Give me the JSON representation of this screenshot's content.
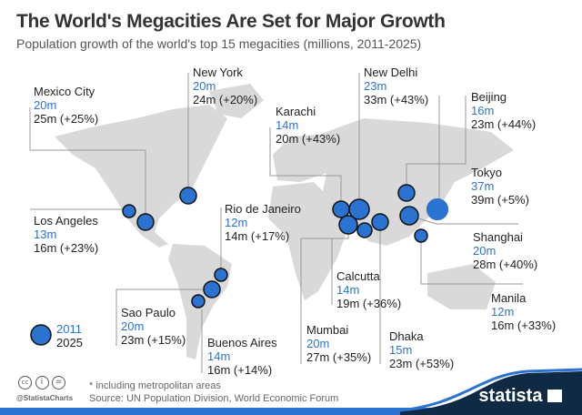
{
  "title": "The World's Megacities Are Set for Major Growth",
  "subtitle": "Population growth of the world's top 15 megacities (millions, 2011-2025)",
  "colors": {
    "bubble": "#2a73d1",
    "map": "#d9d9d9",
    "footer": "#0e2a45",
    "accent": "#2a73d1"
  },
  "cities": [
    {
      "name": "Mexico City",
      "v2011": "20m",
      "v2025": "25m (+25%)"
    },
    {
      "name": "New York",
      "v2011": "20m",
      "v2025": "24m (+20%)"
    },
    {
      "name": "Karachi",
      "v2011": "14m",
      "v2025": "20m (+43%)"
    },
    {
      "name": "New Delhi",
      "v2011": "23m",
      "v2025": "33m (+43%)"
    },
    {
      "name": "Beijing",
      "v2011": "16m",
      "v2025": "23m (+44%)"
    },
    {
      "name": "Tokyo",
      "v2011": "37m",
      "v2025": "39m (+5%)"
    },
    {
      "name": "Los Angeles",
      "v2011": "13m",
      "v2025": "16m (+23%)"
    },
    {
      "name": "Rio de Janeiro",
      "v2011": "12m",
      "v2025": "14m (+17%)"
    },
    {
      "name": "Shanghai",
      "v2011": "20m",
      "v2025": "28m (+40%)"
    },
    {
      "name": "Calcutta",
      "v2011": "14m",
      "v2025": "19m (+36%)"
    },
    {
      "name": "Manila",
      "v2011": "12m",
      "v2025": "16m (+33%)"
    },
    {
      "name": "Sao Paulo",
      "v2011": "20m",
      "v2025": "23m (+15%)"
    },
    {
      "name": "Mumbai",
      "v2011": "20m",
      "v2025": "27m (+35%)"
    },
    {
      "name": "Dhaka",
      "v2011": "15m",
      "v2025": "23m (+53%)"
    },
    {
      "name": "Buenos Aires",
      "v2011": "14m",
      "v2025": "16m (+14%)"
    }
  ],
  "legend": {
    "inner": "2011",
    "outer": "2025"
  },
  "footer": {
    "note": "* including metropolitan areas",
    "source": "Source: UN Population Division, World Economic Forum",
    "handle": "@StatistaCharts",
    "brand": "statista",
    "license_icons": [
      "cc-icon",
      "by-icon",
      "nd-icon"
    ]
  }
}
